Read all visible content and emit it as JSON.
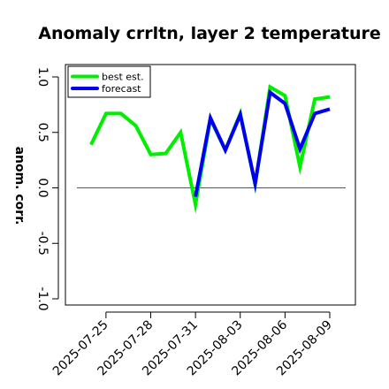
{
  "chart_data": {
    "type": "line",
    "title": "Anomaly crrltn, layer 2 temperature",
    "ylabel": "anom. corr.",
    "xlabel": "",
    "ylim": [
      -1.0,
      1.0
    ],
    "yticks": [
      "-1.0",
      "-0.5",
      "0.0",
      "0.5",
      "1.0"
    ],
    "ytick_values": [
      -1.0,
      -0.5,
      0.0,
      0.5,
      1.0
    ],
    "x": [
      "2025-07-24",
      "2025-07-25",
      "2025-07-26",
      "2025-07-27",
      "2025-07-28",
      "2025-07-29",
      "2025-07-30",
      "2025-07-31",
      "2025-08-01",
      "2025-08-02",
      "2025-08-03",
      "2025-08-04",
      "2025-08-05",
      "2025-08-06",
      "2025-08-07",
      "2025-08-08",
      "2025-08-09"
    ],
    "xticks": [
      "2025-07-25",
      "2025-07-28",
      "2025-07-31",
      "2025-08-03",
      "2025-08-06",
      "2025-08-09"
    ],
    "xtick_colors": [
      "#000000",
      "#000000",
      "#228b22",
      "#000000",
      "#000000",
      "#000000"
    ],
    "series": [
      {
        "name": "best est.",
        "color": "#00ee00",
        "values": [
          0.39,
          0.67,
          0.67,
          0.56,
          0.3,
          0.31,
          0.5,
          -0.15,
          0.62,
          0.34,
          0.67,
          0.03,
          0.91,
          0.83,
          0.19,
          0.8,
          0.82
        ]
      },
      {
        "name": "forecast",
        "color": "#0000ee",
        "values": [
          null,
          null,
          null,
          null,
          null,
          null,
          null,
          -0.08,
          0.63,
          0.34,
          0.66,
          0.04,
          0.86,
          0.76,
          0.35,
          0.67,
          0.71
        ]
      }
    ],
    "reference_line": 0.0,
    "legend": "top-left",
    "grid": false
  }
}
